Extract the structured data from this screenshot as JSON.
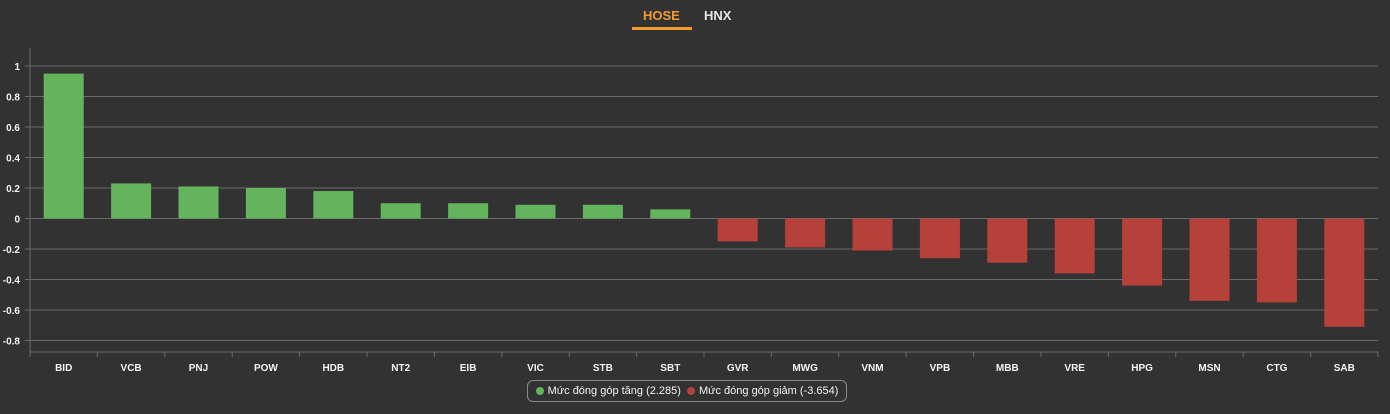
{
  "tabs": [
    {
      "label": "HOSE",
      "active": true
    },
    {
      "label": "HNX",
      "active": false
    }
  ],
  "colors": {
    "background": "#323232",
    "positive": "#63b45d",
    "negative": "#b5413a",
    "accent": "#f29a2e",
    "grid": "#6a6a6a",
    "text": "#f2f2f2"
  },
  "legend": {
    "increase_label": "Mức đóng góp tăng (2.285)",
    "decrease_label": "Mức đóng góp giảm (-3.654)"
  },
  "chart_data": {
    "type": "bar",
    "title": "",
    "xlabel": "",
    "ylabel": "",
    "ylim": [
      -0.8,
      1.0
    ],
    "yticks": [
      1,
      0.8,
      0.6,
      0.4,
      0.2,
      0,
      -0.2,
      -0.4,
      -0.6,
      -0.8
    ],
    "grid": true,
    "legend_position": "bottom",
    "categories": [
      "BID",
      "VCB",
      "PNJ",
      "POW",
      "HDB",
      "NT2",
      "EIB",
      "VIC",
      "STB",
      "SBT",
      "GVR",
      "MWG",
      "VNM",
      "VPB",
      "MBB",
      "VRE",
      "HPG",
      "MSN",
      "CTG",
      "SAB"
    ],
    "values": [
      0.95,
      0.23,
      0.21,
      0.2,
      0.18,
      0.1,
      0.1,
      0.09,
      0.09,
      0.06,
      -0.15,
      -0.19,
      -0.21,
      -0.26,
      -0.29,
      -0.36,
      -0.44,
      -0.54,
      -0.55,
      -0.71
    ],
    "series": [
      {
        "name": "Mức đóng góp tăng (2.285)",
        "color": "#63b45d"
      },
      {
        "name": "Mức đóng góp giảm (-3.654)",
        "color": "#b5413a"
      }
    ]
  }
}
